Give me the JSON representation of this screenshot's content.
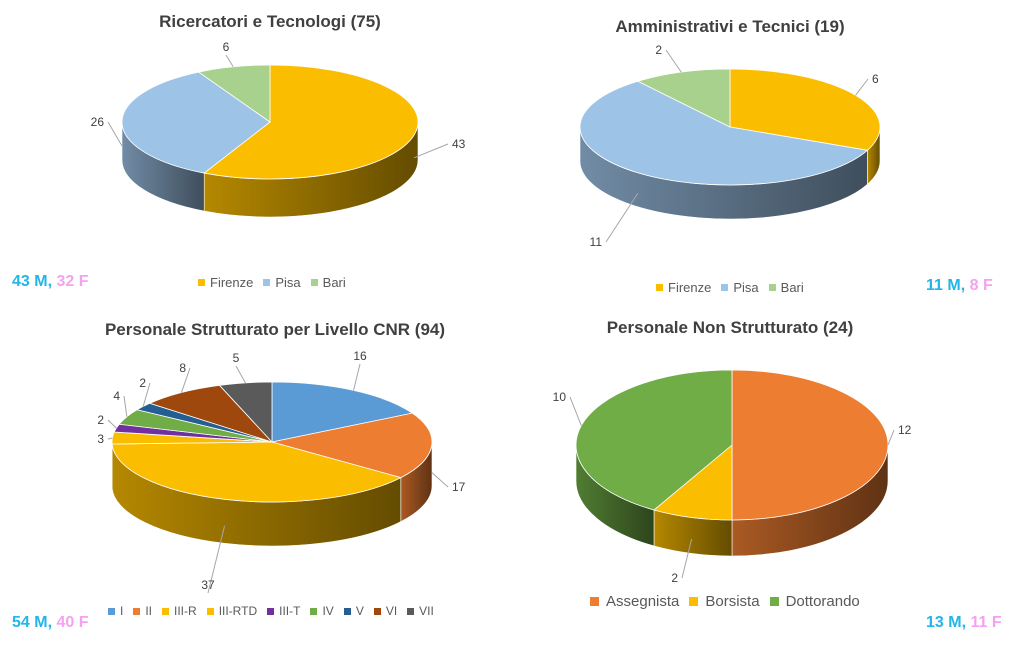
{
  "colors": {
    "Firenze": "#fbbd00",
    "Pisa": "#9dc3e6",
    "Bari": "#a9d18e",
    "I": "#5b9bd5",
    "II": "#ed7d31",
    "III-R": "#fbbd00",
    "III-RTD": "#fbbd00",
    "III-T": "#7030a0",
    "IV": "#70ad47",
    "V": "#255e91",
    "VI": "#9e480e",
    "VII": "#5a5a5a",
    "Assegnista": "#ed7d31",
    "Borsista": "#fbbd00",
    "Dottorando": "#70ad47",
    "male": "#22b5e8",
    "female": "#f4a2f0"
  },
  "chart_data": [
    {
      "type": "pie",
      "title": "Ricercatori e Tecnologi (75)",
      "categories": [
        "Firenze",
        "Pisa",
        "Bari"
      ],
      "values": [
        43,
        26,
        6
      ],
      "legend": "bottom",
      "gender": {
        "m": "43 M",
        "sep": ",",
        "f": "32 F"
      }
    },
    {
      "type": "pie",
      "title": "Amministrativi e Tecnici (19)",
      "categories": [
        "Firenze",
        "Pisa",
        "Bari"
      ],
      "values": [
        6,
        11,
        2
      ],
      "legend": "bottom",
      "gender": {
        "m": "11 M",
        "sep": ",",
        "f": "8 F"
      }
    },
    {
      "type": "pie",
      "title": "Personale Strutturato per Livello CNR (94)",
      "categories": [
        "I",
        "II",
        "III-R",
        "III-RTD",
        "III-T",
        "IV",
        "V",
        "VI",
        "VII"
      ],
      "values": [
        16,
        17,
        37,
        3,
        2,
        4,
        2,
        8,
        5
      ],
      "legend": "bottom",
      "gender": {
        "m": "54 M",
        "sep": ",",
        "f": "40 F"
      }
    },
    {
      "type": "pie",
      "title": "Personale Non Strutturato (24)",
      "categories": [
        "Assegnista",
        "Borsista",
        "Dottorando"
      ],
      "values": [
        12,
        2,
        10
      ],
      "legend": "bottom",
      "gender": {
        "m": "13 M",
        "sep": ",",
        "f": "11 F"
      }
    }
  ]
}
